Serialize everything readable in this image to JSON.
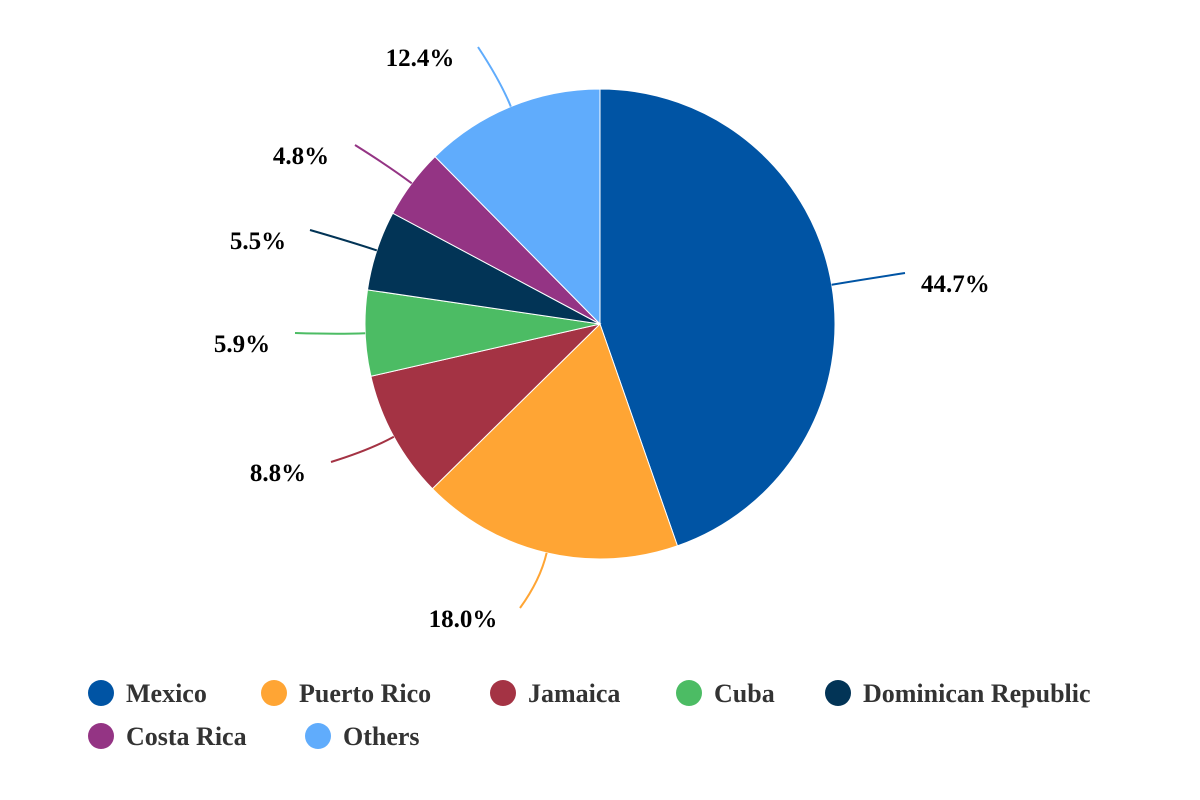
{
  "chart_data": {
    "type": "pie",
    "title": "",
    "legend_position": "bottom",
    "start_angle": "top, clockwise",
    "slices": [
      {
        "label": "Mexico",
        "value": 44.7,
        "display": "44.7%",
        "color": "#0054a4"
      },
      {
        "label": "Puerto Rico",
        "value": 18.0,
        "display": "18.0%",
        "color": "#ffa534"
      },
      {
        "label": "Jamaica",
        "value": 8.8,
        "display": "8.8%",
        "color": "#a43344"
      },
      {
        "label": "Cuba",
        "value": 5.9,
        "display": "5.9%",
        "color": "#4cbc64"
      },
      {
        "label": "Dominican Republic",
        "value": 5.5,
        "display": "5.5%",
        "color": "#023456"
      },
      {
        "label": "Costa Rica",
        "value": 4.8,
        "display": "4.8%",
        "color": "#943484"
      },
      {
        "label": "Others",
        "value": 12.4,
        "display": "12.4%",
        "color": "#60acfc"
      }
    ]
  }
}
